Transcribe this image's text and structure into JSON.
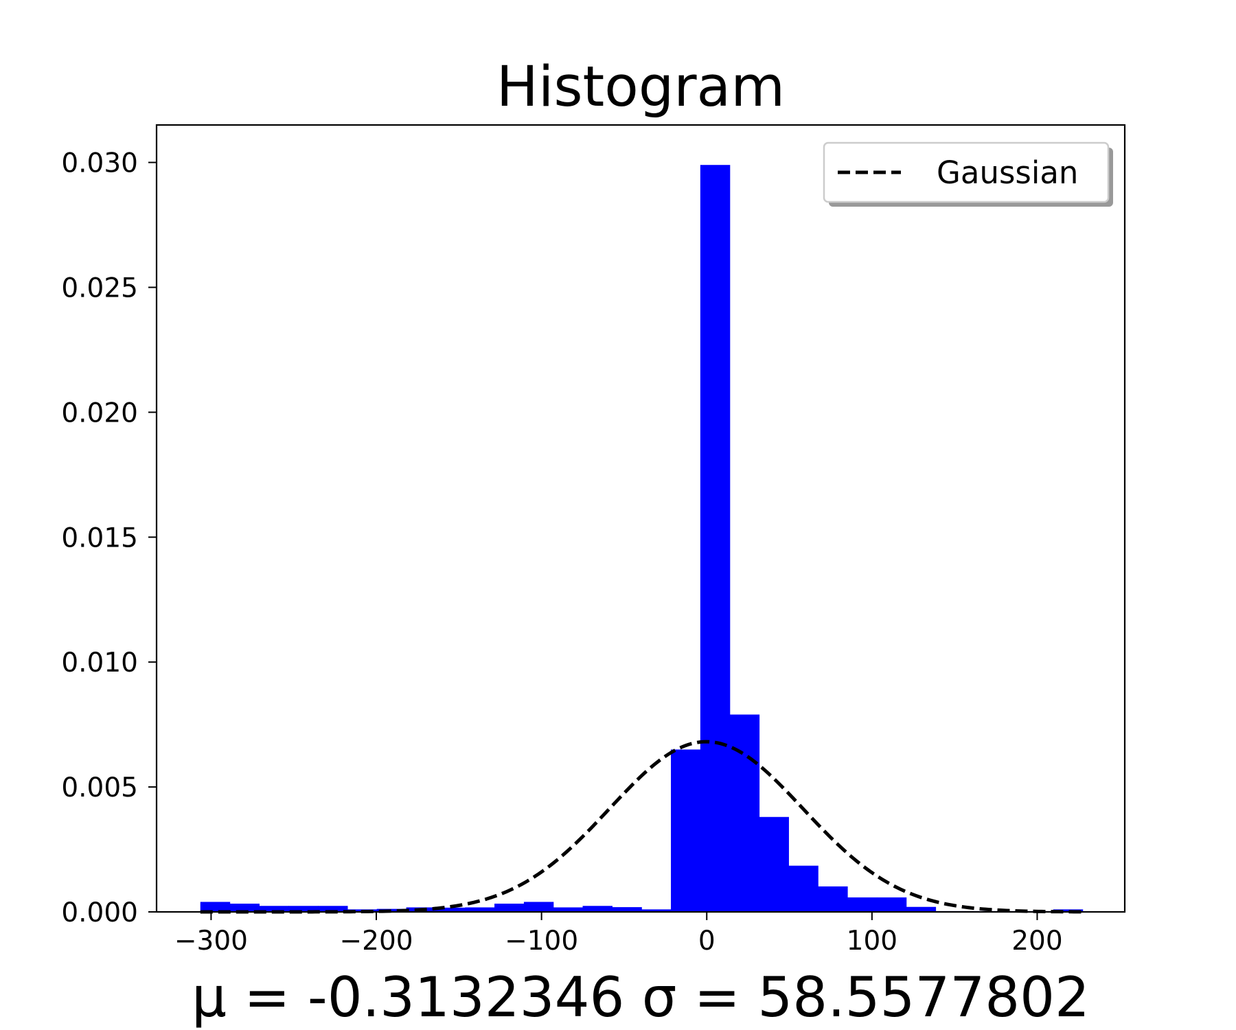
{
  "chart_data": {
    "type": "bar",
    "title": "Histogram",
    "xlabel": "μ = -0.3132346  σ = 58.5577802",
    "ylabel": "",
    "xlim": [
      -333,
      253
    ],
    "ylim": [
      0,
      0.0315
    ],
    "xticks": [
      -300,
      -200,
      -100,
      0,
      100,
      200
    ],
    "xtick_labels": [
      "−300",
      "−200",
      "−100",
      "0",
      "100",
      "200"
    ],
    "yticks": [
      0,
      0.005,
      0.01,
      0.015,
      0.02,
      0.025,
      0.03
    ],
    "ytick_labels": [
      "0.000",
      "0.005",
      "0.010",
      "0.015",
      "0.020",
      "0.025",
      "0.030"
    ],
    "grid": false,
    "legend_position": "top-right",
    "bin_edges": [
      -306.5,
      -288.7,
      -270.9,
      -253.1,
      -235.3,
      -217.5,
      -199.7,
      -181.9,
      -164.1,
      -146.3,
      -128.5,
      -110.7,
      -92.9,
      -75.1,
      -57.3,
      -39.5,
      -21.7,
      -3.9,
      13.9,
      31.7,
      49.5,
      67.3,
      85.1,
      102.9,
      120.7,
      138.5,
      156.3,
      174.1,
      191.9,
      209.7,
      227.5
    ],
    "series": [
      {
        "kind": "histogram",
        "color": "#0000ff",
        "values": [
          0.0004,
          0.00033,
          0.00024,
          0.00024,
          0.00024,
          0.0001,
          0.00012,
          0.00018,
          0.00017,
          0.00018,
          0.00033,
          0.0004,
          0.00018,
          0.00024,
          0.00019,
          0.0001,
          0.0065,
          0.0299,
          0.0079,
          0.0038,
          0.00185,
          0.00102,
          0.00058,
          0.00058,
          0.0002,
          3e-05,
          3e-05,
          3e-05,
          3e-05,
          0.0001
        ]
      },
      {
        "kind": "line",
        "name": "Gaussian",
        "color": "#000000",
        "line_style": "dashed",
        "mu": -0.3132346,
        "sigma": 58.5577802,
        "x_range": [
          -306.5,
          227.5
        ]
      }
    ]
  }
}
